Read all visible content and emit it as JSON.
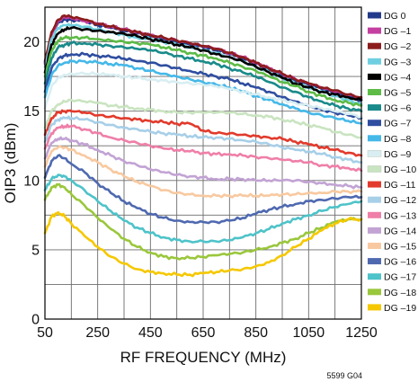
{
  "figure_id": "5599 G04",
  "chart_data": {
    "type": "line",
    "xlabel": "RF FREQUENCY (MHz)",
    "ylabel": "OIP3 (dBm)",
    "xlim": [
      50,
      1250
    ],
    "ylim": [
      0,
      22.5
    ],
    "xticks": [
      50,
      250,
      450,
      650,
      850,
      1050,
      1250
    ],
    "yticks": [
      0,
      5,
      10,
      15,
      20
    ],
    "grid": true,
    "legend_position": "right",
    "x": [
      50,
      75,
      100,
      125,
      150,
      200,
      250,
      300,
      350,
      400,
      450,
      500,
      550,
      600,
      650,
      700,
      750,
      800,
      850,
      900,
      950,
      1000,
      1050,
      1100,
      1150,
      1200,
      1250
    ],
    "series": [
      {
        "name": "DG 0",
        "color": "#233a8c",
        "values": [
          18.5,
          20.6,
          21.4,
          21.6,
          21.6,
          21.5,
          21.2,
          21.0,
          20.8,
          20.6,
          20.4,
          20.2,
          20.0,
          19.8,
          19.6,
          19.4,
          19.1,
          18.8,
          18.4,
          18.0,
          17.6,
          17.2,
          16.9,
          16.6,
          16.3,
          16.0,
          15.8
        ]
      },
      {
        "name": "DG –1",
        "color": "#c43fa0",
        "values": [
          18.4,
          20.5,
          21.5,
          21.8,
          21.7,
          21.5,
          21.3,
          21.1,
          20.9,
          20.7,
          20.5,
          20.3,
          20.1,
          19.9,
          19.7,
          19.5,
          19.2,
          18.9,
          18.5,
          18.1,
          17.7,
          17.3,
          17.0,
          16.7,
          16.4,
          16.2,
          15.9
        ]
      },
      {
        "name": "DG –2",
        "color": "#8c1c1c",
        "values": [
          18.6,
          20.7,
          21.6,
          21.9,
          21.8,
          21.6,
          21.3,
          21.1,
          20.9,
          20.7,
          20.5,
          20.3,
          20.1,
          19.9,
          19.7,
          19.5,
          19.2,
          18.9,
          18.5,
          18.1,
          17.7,
          17.3,
          17.0,
          16.7,
          16.5,
          16.2,
          16.0
        ]
      },
      {
        "name": "DG –3",
        "color": "#6fcfe0",
        "values": [
          18.2,
          20.2,
          21.0,
          21.2,
          21.2,
          21.1,
          20.9,
          20.7,
          20.5,
          20.3,
          20.2,
          20.0,
          19.8,
          19.6,
          19.4,
          19.2,
          18.9,
          18.6,
          18.2,
          17.8,
          17.4,
          17.0,
          16.7,
          16.4,
          16.1,
          15.8,
          15.5
        ]
      },
      {
        "name": "DG –4",
        "color": "#000000",
        "values": [
          17.8,
          19.8,
          20.6,
          20.9,
          21.0,
          20.9,
          20.8,
          20.7,
          20.6,
          20.4,
          20.2,
          20.0,
          19.8,
          19.6,
          19.4,
          19.1,
          18.9,
          18.6,
          18.2,
          17.8,
          17.4,
          17.0,
          16.7,
          16.4,
          16.2,
          16.0,
          15.8
        ]
      },
      {
        "name": "DG –5",
        "color": "#5dbb46",
        "values": [
          17.5,
          19.3,
          20.1,
          20.3,
          20.3,
          20.3,
          20.2,
          20.1,
          20.0,
          19.9,
          19.8,
          19.6,
          19.4,
          19.2,
          19.0,
          18.8,
          18.5,
          18.2,
          17.9,
          17.5,
          17.1,
          16.8,
          16.4,
          16.1,
          15.8,
          15.6,
          15.4
        ]
      },
      {
        "name": "DG –6",
        "color": "#1a8a8a",
        "values": [
          17.0,
          18.8,
          19.6,
          19.8,
          19.9,
          19.9,
          19.8,
          19.7,
          19.6,
          19.5,
          19.4,
          19.2,
          19.0,
          18.8,
          18.6,
          18.4,
          18.1,
          17.8,
          17.5,
          17.1,
          16.7,
          16.4,
          16.0,
          15.7,
          15.4,
          15.2,
          15.0
        ]
      },
      {
        "name": "DG –7",
        "color": "#2f4ea0",
        "values": [
          16.4,
          18.1,
          18.8,
          19.0,
          19.1,
          19.1,
          19.0,
          18.9,
          18.8,
          18.6,
          18.5,
          18.3,
          18.1,
          17.9,
          17.7,
          17.5,
          17.3,
          17.0,
          16.7,
          16.4,
          16.0,
          15.7,
          15.4,
          15.1,
          14.9,
          14.7,
          14.5
        ]
      },
      {
        "name": "DG –8",
        "color": "#45b8e8",
        "values": [
          16.0,
          17.6,
          18.3,
          18.5,
          18.6,
          18.6,
          18.5,
          18.4,
          18.3,
          18.1,
          17.9,
          17.7,
          17.5,
          17.3,
          17.1,
          16.9,
          16.7,
          16.4,
          16.1,
          15.8,
          15.5,
          15.2,
          14.9,
          14.7,
          14.5,
          14.3,
          14.1
        ]
      },
      {
        "name": "DG –9",
        "color": "#d8eef2",
        "values": [
          15.2,
          16.8,
          17.4,
          17.6,
          17.7,
          17.7,
          17.7,
          17.6,
          17.5,
          17.4,
          17.3,
          17.2,
          17.1,
          17.0,
          16.9,
          16.8,
          16.6,
          16.4,
          16.2,
          16.0,
          15.8,
          15.6,
          15.4,
          15.2,
          15.0,
          14.8,
          14.6
        ]
      },
      {
        "name": "DG –10",
        "color": "#c9e4c0",
        "values": [
          13.8,
          15.0,
          15.5,
          15.7,
          15.8,
          15.7,
          15.6,
          15.4,
          15.3,
          15.2,
          15.1,
          15.0,
          14.9,
          14.9,
          14.9,
          14.9,
          14.9,
          14.8,
          14.7,
          14.6,
          14.4,
          14.2,
          14.0,
          13.8,
          13.5,
          13.3,
          13.1
        ]
      },
      {
        "name": "DG –11",
        "color": "#e23a2c",
        "values": [
          13.3,
          14.5,
          14.9,
          15.0,
          15.0,
          14.9,
          14.7,
          14.6,
          14.5,
          14.4,
          14.3,
          14.2,
          14.1,
          14.1,
          13.6,
          13.4,
          13.4,
          13.3,
          13.2,
          13.1,
          13.0,
          12.8,
          12.6,
          12.4,
          12.2,
          12.0,
          11.8
        ]
      },
      {
        "name": "DG –12",
        "color": "#a7cfe8",
        "values": [
          12.8,
          14.0,
          14.4,
          14.5,
          14.5,
          14.4,
          14.2,
          14.0,
          13.8,
          13.7,
          13.5,
          13.4,
          13.3,
          13.2,
          13.1,
          13.1,
          13.0,
          12.9,
          12.8,
          12.6,
          12.4,
          12.2,
          12.1,
          11.9,
          11.7,
          11.5,
          11.3
        ]
      },
      {
        "name": "DG –13",
        "color": "#ef7fa8",
        "values": [
          12.3,
          13.4,
          13.8,
          13.9,
          13.9,
          13.7,
          13.4,
          13.1,
          12.9,
          12.7,
          12.5,
          12.3,
          12.2,
          12.1,
          12.0,
          11.9,
          11.9,
          11.8,
          11.7,
          11.6,
          11.5,
          11.4,
          11.3,
          11.1,
          11.0,
          10.9,
          10.7
        ]
      },
      {
        "name": "DG –14",
        "color": "#c2a3d4",
        "values": [
          11.6,
          12.7,
          13.0,
          13.0,
          12.9,
          12.6,
          12.2,
          11.8,
          11.4,
          11.1,
          10.8,
          10.6,
          10.4,
          10.3,
          10.2,
          10.1,
          10.1,
          10.1,
          10.0,
          10.0,
          10.0,
          10.0,
          9.9,
          9.8,
          9.7,
          9.6,
          9.5
        ]
      },
      {
        "name": "DG –15",
        "color": "#f8c9a0",
        "values": [
          11.0,
          12.1,
          12.4,
          12.4,
          12.2,
          11.8,
          11.3,
          10.8,
          10.3,
          9.9,
          9.6,
          9.3,
          9.1,
          9.0,
          8.9,
          8.9,
          8.9,
          8.9,
          8.9,
          8.9,
          9.0,
          9.0,
          9.1,
          9.1,
          9.2,
          9.2,
          9.2
        ]
      },
      {
        "name": "DG –16",
        "color": "#4f69b0",
        "values": [
          10.2,
          11.4,
          11.8,
          11.6,
          11.2,
          10.6,
          9.8,
          9.1,
          8.5,
          8.0,
          7.6,
          7.3,
          7.1,
          7.0,
          7.0,
          7.0,
          7.1,
          7.3,
          7.6,
          7.9,
          8.1,
          8.3,
          8.5,
          8.6,
          8.7,
          8.8,
          8.8
        ]
      },
      {
        "name": "DG –17",
        "color": "#4ec3c9",
        "values": [
          9.3,
          10.1,
          10.4,
          10.3,
          10.0,
          9.3,
          8.5,
          7.8,
          7.1,
          6.6,
          6.2,
          5.9,
          5.7,
          5.6,
          5.6,
          5.6,
          5.7,
          5.9,
          6.2,
          6.5,
          6.9,
          7.2,
          7.5,
          7.8,
          8.1,
          8.3,
          8.5
        ]
      },
      {
        "name": "DG –18",
        "color": "#9ac73c",
        "values": [
          8.6,
          9.5,
          9.7,
          9.5,
          9.0,
          8.2,
          7.3,
          6.5,
          5.8,
          5.2,
          4.8,
          4.5,
          4.4,
          4.4,
          4.5,
          4.6,
          4.7,
          4.8,
          5.0,
          5.2,
          5.5,
          5.8,
          6.2,
          6.6,
          7.0,
          7.2,
          7.2
        ]
      },
      {
        "name": "DG –19",
        "color": "#f5c800",
        "values": [
          6.2,
          7.4,
          7.7,
          7.4,
          6.9,
          6.0,
          5.2,
          4.5,
          4.0,
          3.6,
          3.4,
          3.3,
          3.2,
          3.2,
          3.3,
          3.4,
          3.5,
          3.6,
          3.8,
          4.1,
          4.6,
          5.2,
          5.8,
          6.4,
          6.9,
          7.2,
          7.2
        ]
      }
    ]
  }
}
